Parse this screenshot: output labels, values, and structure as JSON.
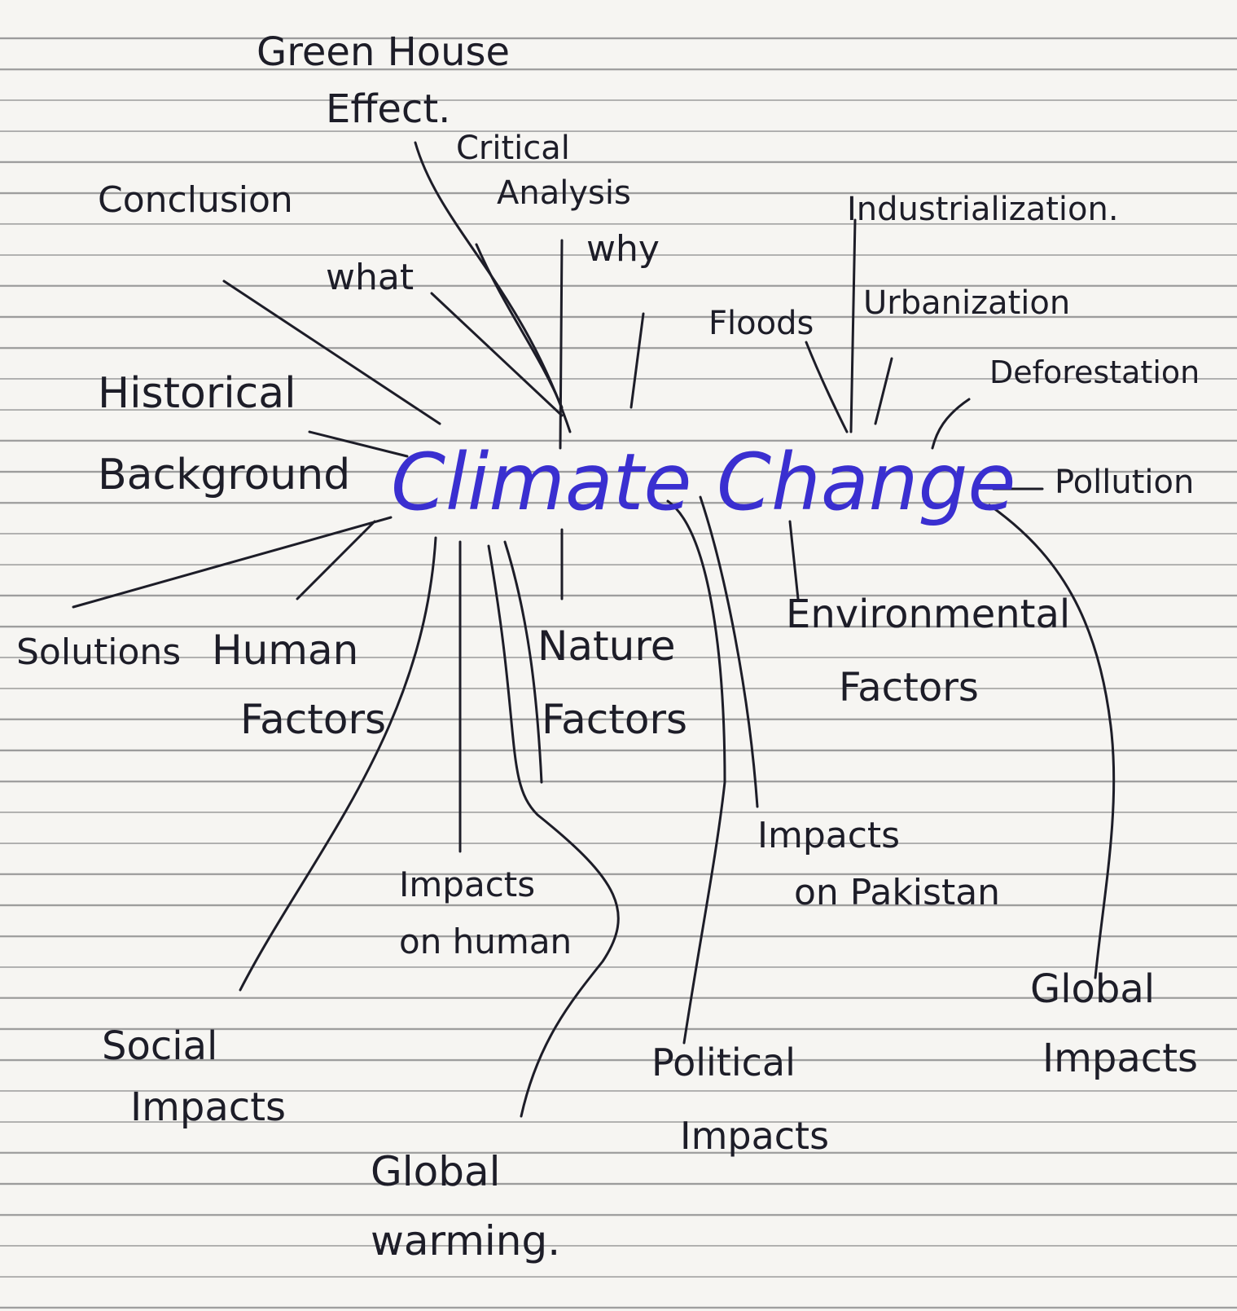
{
  "center": {
    "label": "Climate Change"
  },
  "nodes": [
    {
      "lines": [
        "Green House",
        "Effect."
      ]
    },
    {
      "lines": [
        "Critical",
        "Analysis"
      ]
    },
    {
      "lines": [
        "Conclusion"
      ]
    },
    {
      "lines": [
        "what"
      ]
    },
    {
      "lines": [
        "why"
      ]
    },
    {
      "lines": [
        "Industrialization."
      ]
    },
    {
      "lines": [
        "Floods"
      ]
    },
    {
      "lines": [
        "Urbanization"
      ]
    },
    {
      "lines": [
        "Deforestation"
      ]
    },
    {
      "lines": [
        "Historical",
        "Background"
      ]
    },
    {
      "lines": [
        "Pollution"
      ]
    },
    {
      "lines": [
        "Solutions"
      ]
    },
    {
      "lines": [
        "Human",
        "Factors"
      ]
    },
    {
      "lines": [
        "Nature",
        "Factors"
      ]
    },
    {
      "lines": [
        "Environmental",
        "Factors"
      ]
    },
    {
      "lines": [
        "Impacts",
        "on human"
      ]
    },
    {
      "lines": [
        "Impacts",
        "on Pakistan"
      ]
    },
    {
      "lines": [
        "Social",
        "Impacts"
      ]
    },
    {
      "lines": [
        "Global",
        "Impacts"
      ]
    },
    {
      "lines": [
        "Political",
        "Impacts"
      ]
    },
    {
      "lines": [
        "Global",
        "warming."
      ]
    }
  ]
}
